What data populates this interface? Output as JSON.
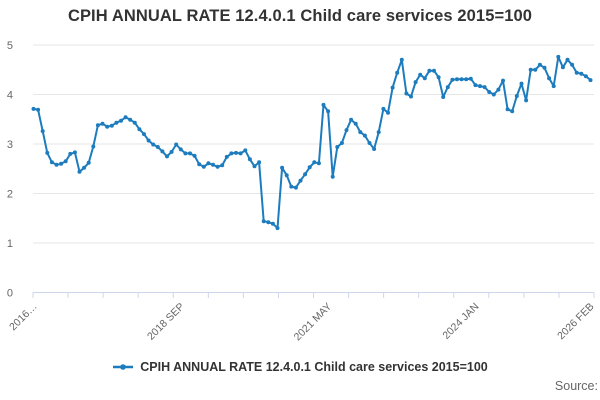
{
  "title": "CPIH ANNUAL RATE 12.4.0.1 Child care services 2015=100",
  "legend": {
    "series_label": "CPIH ANNUAL RATE 12.4.0.1 Child care services 2015=100"
  },
  "footer": {
    "source_label": "Source:"
  },
  "colors": {
    "line": "#1d7cbe",
    "grid": "#e6e6e6",
    "axis": "#ccd6eb",
    "tick_label": "#666666",
    "title_text": "#333333"
  },
  "chart_data": {
    "type": "line",
    "title": "CPIH ANNUAL RATE 12.4.0.1 Child care services 2015=100",
    "x_unit": "month",
    "x_start": "2016 JAN",
    "x_end": "2026 FEB",
    "ylim": [
      0,
      5
    ],
    "yticks": [
      0,
      1,
      2,
      3,
      4,
      5
    ],
    "x_axis_tick_count": 17,
    "grid": true,
    "legend_position": "bottom",
    "marker": "circle",
    "xtick_labels": [
      {
        "label": "2016…",
        "month_index": 0
      },
      {
        "label": "2018 SEP",
        "month_index": 32
      },
      {
        "label": "2021 MAY",
        "month_index": 64
      },
      {
        "label": "2024 JAN",
        "month_index": 96
      },
      {
        "label": "2026 FEB",
        "month_index": 121
      }
    ],
    "series": [
      {
        "name": "CPIH ANNUAL RATE 12.4.0.1 Child care services 2015=100",
        "start": "2016 JAN",
        "frequency": "monthly",
        "values": [
          3.71,
          3.69,
          3.26,
          2.82,
          2.63,
          2.58,
          2.6,
          2.65,
          2.8,
          2.83,
          2.44,
          2.52,
          2.62,
          2.95,
          3.38,
          3.41,
          3.35,
          3.37,
          3.43,
          3.47,
          3.54,
          3.49,
          3.43,
          3.3,
          3.2,
          3.07,
          2.99,
          2.94,
          2.85,
          2.75,
          2.84,
          2.99,
          2.89,
          2.81,
          2.81,
          2.76,
          2.59,
          2.54,
          2.61,
          2.58,
          2.54,
          2.57,
          2.74,
          2.81,
          2.82,
          2.81,
          2.87,
          2.69,
          2.55,
          2.63,
          1.44,
          1.42,
          1.39,
          1.3,
          2.52,
          2.37,
          2.14,
          2.12,
          2.26,
          2.39,
          2.53,
          2.63,
          2.61,
          3.79,
          3.66,
          2.34,
          2.94,
          3.02,
          3.28,
          3.49,
          3.41,
          3.24,
          3.17,
          3.02,
          2.9,
          3.24,
          3.71,
          3.63,
          4.14,
          4.44,
          4.7,
          4.02,
          3.96,
          4.25,
          4.4,
          4.33,
          4.48,
          4.48,
          4.35,
          3.95,
          4.15,
          4.3,
          4.31,
          4.31,
          4.31,
          4.32,
          4.19,
          4.17,
          4.15,
          4.05,
          4.0,
          4.1,
          4.28,
          3.7,
          3.66,
          3.97,
          4.22,
          3.88,
          4.5,
          4.5,
          4.6,
          4.54,
          4.33,
          4.17,
          4.76,
          4.55,
          4.7,
          4.6,
          4.44,
          4.42,
          4.37,
          4.29
        ]
      }
    ]
  }
}
